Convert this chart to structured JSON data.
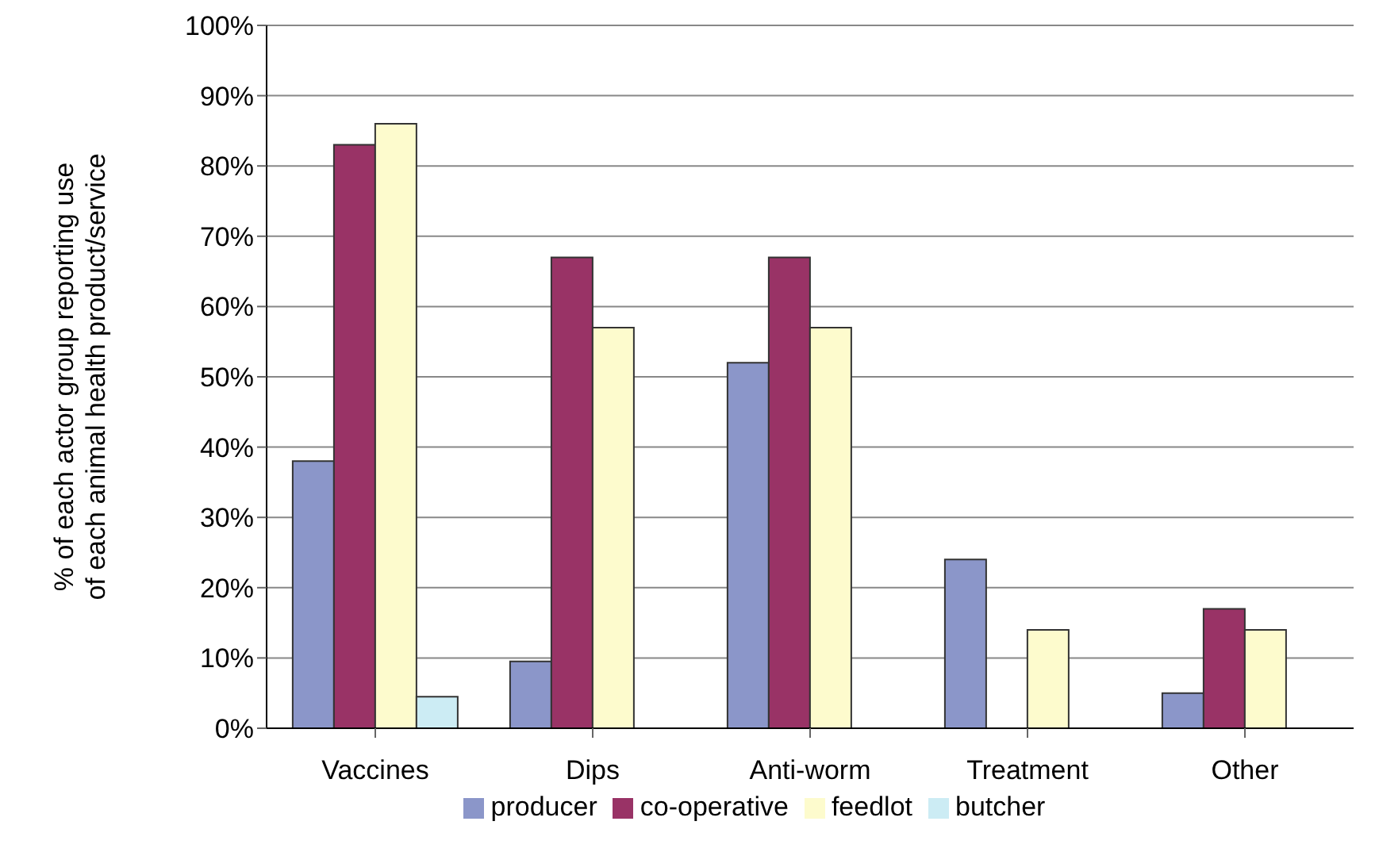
{
  "chart_data": {
    "type": "bar",
    "ylabel": "% of each actor group reporting use of each animal health product/service",
    "categories": [
      "Vaccines",
      "Dips",
      "Anti-worm",
      "Treatment",
      "Other"
    ],
    "series": [
      {
        "name": "producer",
        "color": "#8b96c9",
        "values": [
          38,
          9.5,
          52,
          24,
          5
        ]
      },
      {
        "name": "co-operative",
        "color": "#993366",
        "values": [
          83,
          67,
          67,
          0,
          17
        ]
      },
      {
        "name": "feedlot",
        "color": "#fdfbcd",
        "values": [
          86,
          57,
          57,
          14,
          14
        ]
      },
      {
        "name": "butcher",
        "color": "#ccecf4",
        "values": [
          4.5,
          0,
          0,
          0,
          0
        ]
      }
    ],
    "ylim": [
      0,
      100
    ],
    "yticks": [
      {
        "value": 0,
        "label": "0%"
      },
      {
        "value": 10,
        "label": "10%"
      },
      {
        "value": 20,
        "label": "20%"
      },
      {
        "value": 30,
        "label": "30%"
      },
      {
        "value": 40,
        "label": "40%"
      },
      {
        "value": 50,
        "label": "50%"
      },
      {
        "value": 60,
        "label": "60%"
      },
      {
        "value": 70,
        "label": "70%"
      },
      {
        "value": 80,
        "label": "80%"
      },
      {
        "value": 90,
        "label": "90%"
      },
      {
        "value": 100,
        "label": "100%"
      }
    ],
    "grid": "y",
    "legend": "bottom"
  }
}
